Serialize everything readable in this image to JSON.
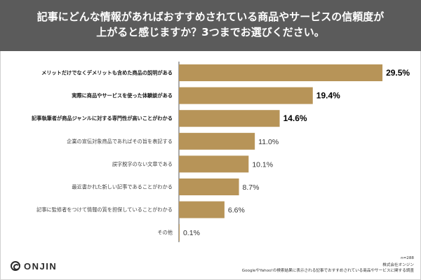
{
  "header": {
    "title_line1": "記事にどんな情報があればおすすめされている商品やサービスの信頼度が",
    "title_line2": "上がると感じますか？3つまでお選びください。"
  },
  "chart_data": {
    "type": "bar",
    "orientation": "horizontal",
    "categories": [
      "メリットだけでなくデメリットも含めた商品の説明がある",
      "実際に商品やサービスを使った体験談がある",
      "記事執筆者が商品ジャンルに対する専門性が高いことがわかる",
      "企業の宣伝対象商品であればその旨を表記する",
      "誤字脱字のない文章である",
      "最近書かれた新しい記事であることがわかる",
      "記事に監修者をつけて情報の質を担保していることがわかる",
      "その他"
    ],
    "values": [
      29.5,
      19.4,
      14.6,
      11.0,
      10.1,
      8.7,
      6.6,
      0.1
    ],
    "value_labels": [
      "29.5%",
      "19.4%",
      "14.6%",
      "11.0%",
      "10.1%",
      "8.7%",
      "6.6%",
      "0.1%"
    ],
    "highlighted_count": 3,
    "xlim": [
      0,
      30
    ],
    "grid": false,
    "bar_color": "#b79458",
    "emphasis_color": "#000000"
  },
  "footer": {
    "sample_size": "n=288",
    "company": "株式会社オンジン",
    "source": "GoogleやYahoo!の検索結果に表示される記事でおすすめされている商品やサービスに関する調査"
  },
  "logo": {
    "text": "ONJIN",
    "icon": "onjin-logo-icon"
  },
  "colors": {
    "header_bg": "#5b5b5b",
    "bar": "#b79458",
    "axis": "#555555"
  }
}
